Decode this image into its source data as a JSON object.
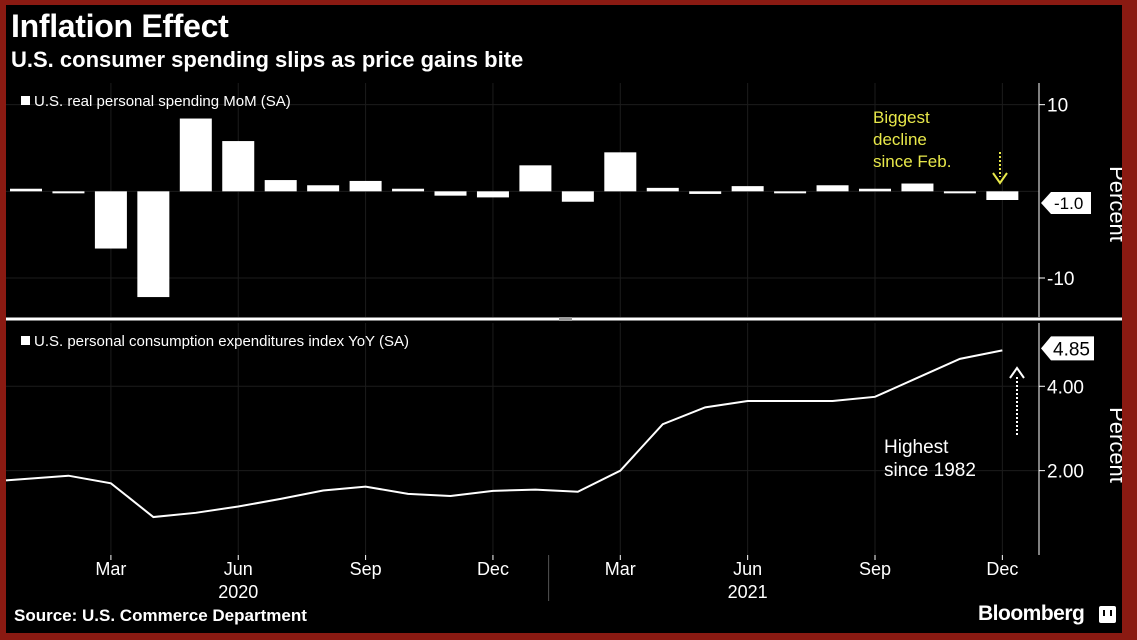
{
  "header": {
    "title": "Inflation Effect",
    "subtitle": "U.S. consumer spending slips as price gains bite"
  },
  "footer": {
    "source": "Source: U.S. Commerce Department",
    "brand": "Bloomberg"
  },
  "colors": {
    "background": "#000000",
    "frame": "#8a1a12",
    "foreground": "#ffffff",
    "annotation_top": "#e8e84a"
  },
  "x_axis": {
    "ticks": [
      "Mar",
      "Jun",
      "Sep",
      "Dec",
      "Mar",
      "Jun",
      "Sep",
      "Dec"
    ],
    "years": [
      "2020",
      "2021"
    ]
  },
  "chart_data": [
    {
      "type": "bar",
      "legend": "U.S. real personal spending MoM (SA)",
      "categories": [
        "Jan 2020",
        "Feb 2020",
        "Mar 2020",
        "Apr 2020",
        "May 2020",
        "Jun 2020",
        "Jul 2020",
        "Aug 2020",
        "Sep 2020",
        "Oct 2020",
        "Nov 2020",
        "Dec 2020",
        "Jan 2021",
        "Feb 2021",
        "Mar 2021",
        "Apr 2021",
        "May 2021",
        "Jun 2021",
        "Jul 2021",
        "Aug 2021",
        "Sep 2021",
        "Oct 2021",
        "Nov 2021",
        "Dec 2021"
      ],
      "values": [
        0.3,
        -0.2,
        -6.6,
        -12.2,
        8.4,
        5.8,
        1.3,
        0.7,
        1.2,
        0.3,
        -0.5,
        -0.7,
        3.0,
        -1.2,
        4.5,
        0.4,
        -0.3,
        0.6,
        -0.2,
        0.7,
        0.3,
        0.9,
        -0.1,
        -1.0
      ],
      "ylabel": "Percent",
      "ylim": [
        -14.5,
        12.5
      ],
      "yticks": [
        "10",
        "-10"
      ],
      "last_value_label": "-1.0",
      "annotation": "Biggest\ndecline\nsince Feb."
    },
    {
      "type": "line",
      "legend": "U.S. personal consumption expenditures index YoY (SA)",
      "x": [
        "Jan 2020",
        "Feb 2020",
        "Mar 2020",
        "Apr 2020",
        "May 2020",
        "Jun 2020",
        "Jul 2020",
        "Aug 2020",
        "Sep 2020",
        "Oct 2020",
        "Nov 2020",
        "Dec 2020",
        "Jan 2021",
        "Feb 2021",
        "Mar 2021",
        "Apr 2021",
        "May 2021",
        "Jun 2021",
        "Jul 2021",
        "Aug 2021",
        "Sep 2021",
        "Oct 2021",
        "Nov 2021",
        "Dec 2021"
      ],
      "values": [
        1.77,
        1.88,
        1.7,
        0.9,
        1.0,
        1.15,
        1.33,
        1.53,
        1.62,
        1.45,
        1.4,
        1.52,
        1.55,
        1.5,
        2.0,
        3.1,
        3.5,
        3.65,
        3.65,
        3.65,
        3.75,
        4.2,
        4.65,
        4.85
      ],
      "ylabel": "Percent",
      "ylim": [
        0.0,
        5.5
      ],
      "yticks": [
        "4.00",
        "2.00"
      ],
      "last_value_label": "4.85",
      "annotation": "Highest\nsince 1982"
    }
  ]
}
